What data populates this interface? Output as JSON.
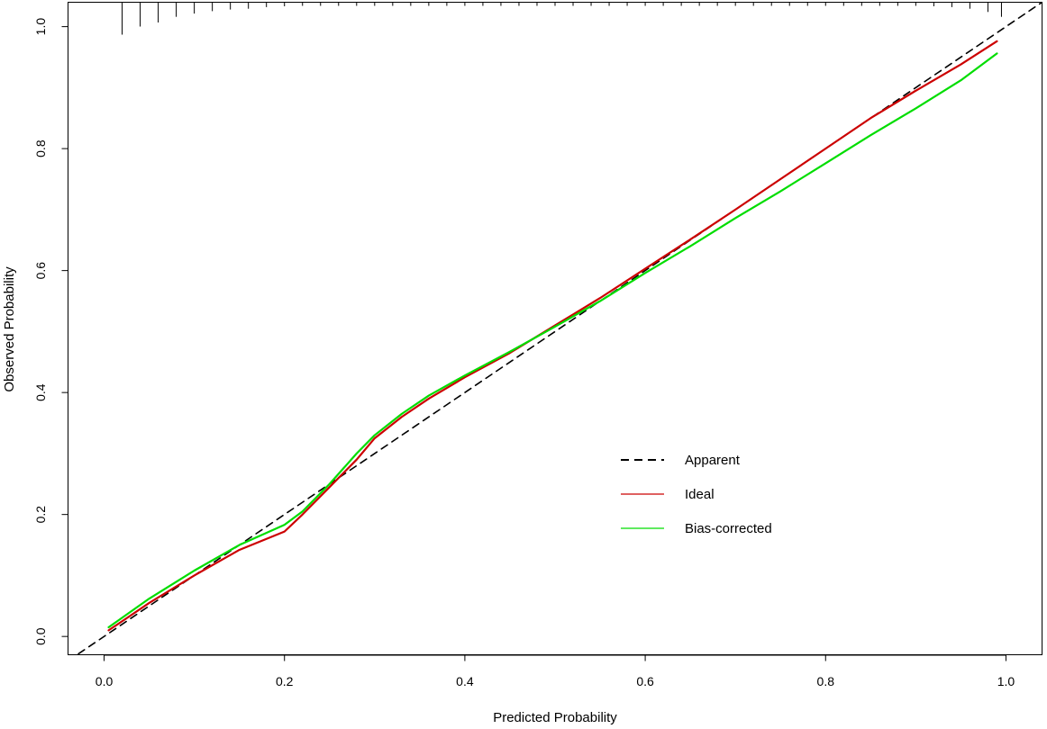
{
  "chart_data": {
    "type": "line",
    "title": "",
    "xlabel": "Predicted Probability",
    "ylabel": "Observed Probability",
    "xlim": [
      -0.04,
      1.04
    ],
    "ylim": [
      -0.03,
      1.04
    ],
    "x_ticks": [
      "0.0",
      "0.2",
      "0.4",
      "0.6",
      "0.8",
      "1.0"
    ],
    "y_ticks": [
      "0.0",
      "0.2",
      "0.4",
      "0.6",
      "0.8",
      "1.0"
    ],
    "grid": false,
    "legend_position": "center-right",
    "series": [
      {
        "name": "Apparent",
        "color": "#000000",
        "dash": true,
        "x": [
          -0.04,
          1.04
        ],
        "y": [
          -0.04,
          1.04
        ]
      },
      {
        "name": "Ideal",
        "color": "#cc0000",
        "dash": false,
        "x": [
          0.005,
          0.05,
          0.1,
          0.15,
          0.2,
          0.22,
          0.25,
          0.28,
          0.3,
          0.33,
          0.36,
          0.4,
          0.45,
          0.5,
          0.55,
          0.6,
          0.65,
          0.7,
          0.75,
          0.8,
          0.85,
          0.9,
          0.95,
          0.99
        ],
        "y": [
          0.01,
          0.055,
          0.1,
          0.142,
          0.172,
          0.2,
          0.245,
          0.29,
          0.325,
          0.36,
          0.39,
          0.425,
          0.465,
          0.51,
          0.555,
          0.603,
          0.651,
          0.7,
          0.75,
          0.8,
          0.85,
          0.895,
          0.938,
          0.976
        ]
      },
      {
        "name": "Bias-corrected",
        "color": "#00dd00",
        "dash": false,
        "x": [
          0.005,
          0.05,
          0.1,
          0.15,
          0.2,
          0.22,
          0.25,
          0.28,
          0.3,
          0.33,
          0.36,
          0.4,
          0.45,
          0.5,
          0.55,
          0.6,
          0.65,
          0.7,
          0.75,
          0.8,
          0.85,
          0.9,
          0.95,
          0.99
        ],
        "y": [
          0.015,
          0.062,
          0.108,
          0.15,
          0.183,
          0.205,
          0.25,
          0.3,
          0.33,
          0.365,
          0.395,
          0.428,
          0.467,
          0.508,
          0.55,
          0.596,
          0.64,
          0.686,
          0.73,
          0.776,
          0.822,
          0.866,
          0.912,
          0.956
        ]
      }
    ],
    "rug": {
      "ticks": [
        [
          0.02,
          0.04
        ],
        [
          0.04,
          0.03
        ],
        [
          0.06,
          0.025
        ],
        [
          0.08,
          0.018
        ],
        [
          0.1,
          0.014
        ],
        [
          0.12,
          0.011
        ],
        [
          0.14,
          0.009
        ],
        [
          0.16,
          0.008
        ],
        [
          0.18,
          0.006
        ],
        [
          0.2,
          0.005
        ],
        [
          0.22,
          0.004
        ],
        [
          0.24,
          0.004
        ],
        [
          0.26,
          0.003
        ],
        [
          0.28,
          0.003
        ],
        [
          0.3,
          0.003
        ],
        [
          0.32,
          0.003
        ],
        [
          0.34,
          0.002
        ],
        [
          0.36,
          0.002
        ],
        [
          0.38,
          0.002
        ],
        [
          0.4,
          0.002
        ],
        [
          0.42,
          0.002
        ],
        [
          0.44,
          0.002
        ],
        [
          0.46,
          0.002
        ],
        [
          0.48,
          0.002
        ],
        [
          0.5,
          0.002
        ],
        [
          0.52,
          0.002
        ],
        [
          0.54,
          0.002
        ],
        [
          0.56,
          0.002
        ],
        [
          0.58,
          0.002
        ],
        [
          0.6,
          0.002
        ],
        [
          0.62,
          0.002
        ],
        [
          0.64,
          0.002
        ],
        [
          0.66,
          0.002
        ],
        [
          0.68,
          0.002
        ],
        [
          0.7,
          0.002
        ],
        [
          0.72,
          0.002
        ],
        [
          0.74,
          0.002
        ],
        [
          0.76,
          0.002
        ],
        [
          0.78,
          0.002
        ],
        [
          0.8,
          0.002
        ],
        [
          0.82,
          0.003
        ],
        [
          0.84,
          0.003
        ],
        [
          0.86,
          0.003
        ],
        [
          0.88,
          0.004
        ],
        [
          0.9,
          0.004
        ],
        [
          0.92,
          0.005
        ],
        [
          0.94,
          0.006
        ],
        [
          0.96,
          0.008
        ],
        [
          0.98,
          0.012
        ],
        [
          0.995,
          0.018
        ]
      ]
    }
  }
}
